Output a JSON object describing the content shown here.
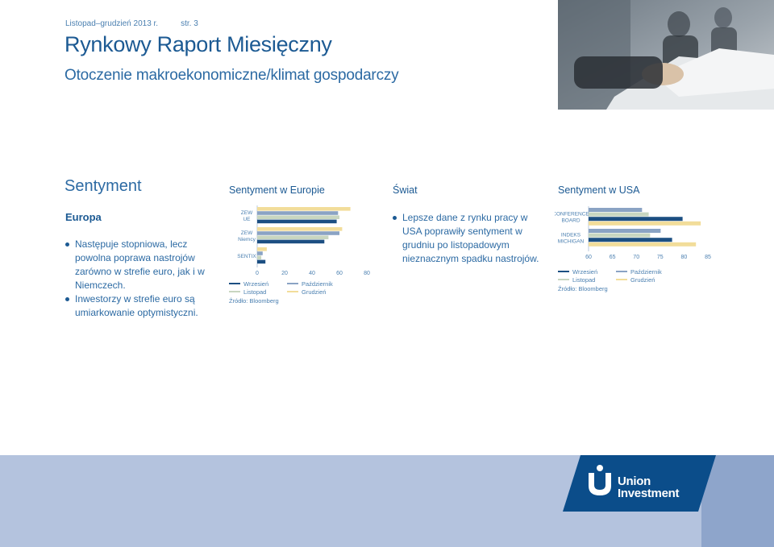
{
  "header": {
    "period": "Listopad–grudzień 2013 r.",
    "page": "str. 3",
    "title": "Rynkowy Raport Miesięczny",
    "subtitle": "Otoczenie makroekonomiczne/klimat gospodarczy"
  },
  "section": {
    "heading": "Sentyment",
    "europe_chart_heading": "Sentyment w Europie",
    "world_heading": "Świat",
    "usa_chart_heading": "Sentyment w USA"
  },
  "europe": {
    "subheading": "Europa",
    "bullets": [
      "Następuje stopniowa, lecz powolna poprawa nastrojów zarówno w strefie euro, jak i w Niemczech.",
      "Inwestorzy w strefie euro są umiarkowanie optymistyczni."
    ]
  },
  "world": {
    "bullets": [
      "Lepsze dane z rynku pracy w USA poprawiły sentyment w grudniu po listopadowym nieznacznym spadku nastrojów."
    ]
  },
  "legend": {
    "wrzesien": "Wrzesień",
    "pazdziernik": "Październik",
    "listopad": "Listopad",
    "grudzien": "Grudzień",
    "source": "Źródło: Bloomberg"
  },
  "colors": {
    "wrzesien": "#1c4f82",
    "pazdziernik": "#8aa3c4",
    "listopad": "#c8d6c0",
    "grudzien": "#f2dd9a"
  },
  "brand": {
    "line1": "Union",
    "line2": "Investment",
    "color": "#0b4d8a"
  },
  "chart_data": [
    {
      "type": "bar",
      "orientation": "horizontal",
      "categories": [
        "ZEW UE",
        "ZEW Niemcy",
        "SENTIX"
      ],
      "series": [
        {
          "name": "Grudzień",
          "values": [
            68,
            62,
            7
          ]
        },
        {
          "name": "Październik",
          "values": [
            59,
            60,
            4
          ]
        },
        {
          "name": "Listopad",
          "values": [
            60,
            52,
            3
          ]
        },
        {
          "name": "Wrzesień",
          "values": [
            58,
            49,
            6
          ]
        }
      ],
      "xticks": [
        0,
        20,
        40,
        60,
        80
      ],
      "xlim": [
        0,
        80
      ],
      "title": "",
      "xlabel": "",
      "ylabel": ""
    },
    {
      "type": "bar",
      "orientation": "horizontal",
      "categories": [
        "CONFERENCE BOARD",
        "INDEKS MICHIGAN"
      ],
      "series": [
        {
          "name": "Październik",
          "values": [
            71.2,
            75.1
          ]
        },
        {
          "name": "Listopad",
          "values": [
            72.6,
            72.9
          ]
        },
        {
          "name": "Wrzesień",
          "values": [
            79.7,
            77.5
          ]
        },
        {
          "name": "Grudzień",
          "values": [
            83.5,
            82.5
          ]
        }
      ],
      "xticks": [
        60,
        65,
        70,
        75,
        80,
        85
      ],
      "xlim": [
        60,
        85
      ],
      "title": "",
      "xlabel": "",
      "ylabel": ""
    }
  ]
}
